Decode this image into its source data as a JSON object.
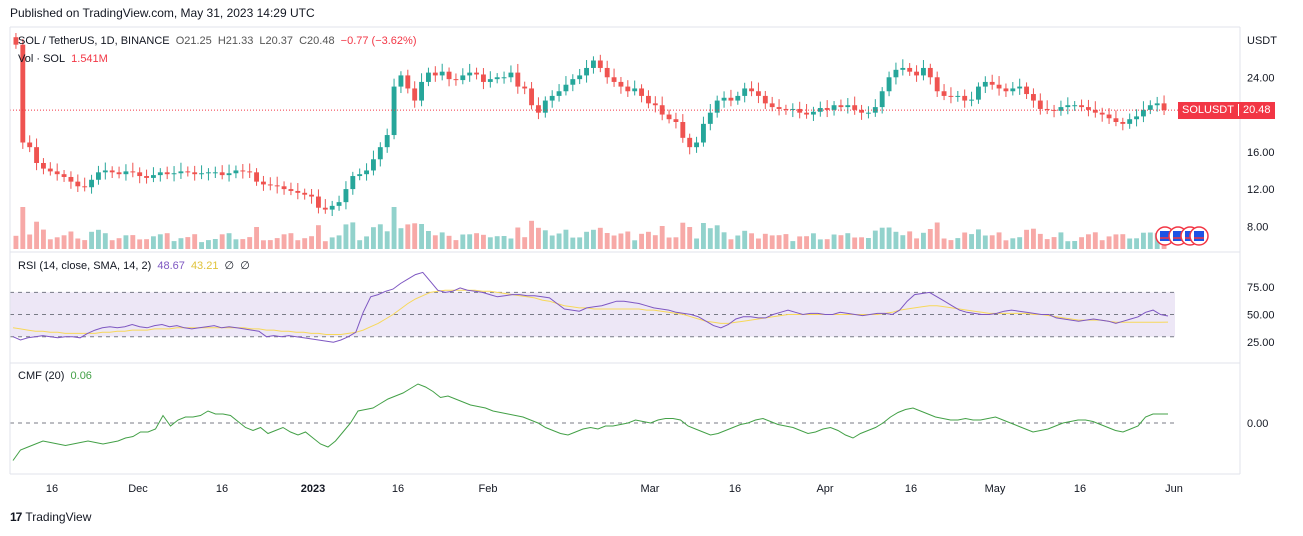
{
  "header": {
    "published": "Published on TradingView.com, May 31, 2023 14:29 UTC"
  },
  "legend": {
    "symbol": "SOL / TetherUS, 1D, BINANCE",
    "open": "O21.25",
    "high": "H21.33",
    "low": "L20.37",
    "close": "C20.48",
    "change": "−0.77 (−3.62%)",
    "vol_label": "Vol · SOL",
    "vol_value": "1.541M",
    "rsi_label": "RSI (14, close, SMA, 14, 2)",
    "rsi_value": "48.67",
    "rsi_sma": "43.21",
    "rsi_extra1": "∅",
    "rsi_extra2": "∅",
    "cmf_label": "CMF (20)",
    "cmf_value": "0.06"
  },
  "price_tag": {
    "symbol": "SOLUSDT",
    "price": "20.48"
  },
  "footer": {
    "brand": "TradingView"
  },
  "colors": {
    "up": "#26a69a",
    "down": "#ef5350",
    "rsi": "#7e57c2",
    "rsi_sma": "#f7d85a",
    "cmf": "#43a047",
    "band": "#ede7f6"
  },
  "chart_data": [
    {
      "type": "candlestick",
      "title": "SOL / TetherUS, 1D, BINANCE",
      "ylabel": "USDT",
      "y_ticks": [
        "24.00",
        "20.00",
        "16.00",
        "12.00",
        "8.00"
      ],
      "ylim": [
        6.0,
        28.0
      ],
      "x_ticks": [
        "16",
        "Dec",
        "16",
        "2023",
        "16",
        "Feb",
        "Mar",
        "16",
        "Apr",
        "16",
        "May",
        "16",
        "Jun"
      ],
      "last_close": 20.48,
      "close_series_approx": [
        27.5,
        17.0,
        16.5,
        14.8,
        14.2,
        13.9,
        13.6,
        13.3,
        12.8,
        12.3,
        12.2,
        13.0,
        13.8,
        14.0,
        13.8,
        13.6,
        13.9,
        13.8,
        13.4,
        13.2,
        13.5,
        13.8,
        13.6,
        13.7,
        13.9,
        13.8,
        13.6,
        13.7,
        13.8,
        13.8,
        13.5,
        13.7,
        14.0,
        13.9,
        13.8,
        12.8,
        12.5,
        12.4,
        12.3,
        12.0,
        11.8,
        11.6,
        11.4,
        11.2,
        10.0,
        9.8,
        10.2,
        10.6,
        12.0,
        13.4,
        13.6,
        14.0,
        15.2,
        16.5,
        17.8,
        23.0,
        24.2,
        22.8,
        21.5,
        23.5,
        24.5,
        24.2,
        24.6,
        23.8,
        23.7,
        24.2,
        24.5,
        24.3,
        23.5,
        23.8,
        24.0,
        24.0,
        24.5,
        23.0,
        22.8,
        21.0,
        20.2,
        21.5,
        22.0,
        22.5,
        23.2,
        23.8,
        24.2,
        25.0,
        25.8,
        25.0,
        24.0,
        23.5,
        23.0,
        22.5,
        22.8,
        22.0,
        21.2,
        21.0,
        20.0,
        19.5,
        19.2,
        17.5,
        16.5,
        17.0,
        19.0,
        20.2,
        21.5,
        21.8,
        21.5,
        22.0,
        22.8,
        22.5,
        22.0,
        21.2,
        20.8,
        20.6,
        20.5,
        20.6,
        20.2,
        20.0,
        20.3,
        20.7,
        20.5,
        21.0,
        20.8,
        21.0,
        20.5,
        20.2,
        20.2,
        20.8,
        22.5,
        24.0,
        24.8,
        25.0,
        24.6,
        24.2,
        25.0,
        24.0,
        22.5,
        22.0,
        21.9,
        22.0,
        21.5,
        21.6,
        23.0,
        23.5,
        23.2,
        22.8,
        22.5,
        22.8,
        23.0,
        22.2,
        21.5,
        20.6,
        20.5,
        20.4,
        20.8,
        21.0,
        21.0,
        20.8,
        20.5,
        20.2,
        20.0,
        19.6,
        19.2,
        19.0,
        19.5,
        19.8,
        20.5,
        21.0,
        21.2,
        20.48
      ]
    },
    {
      "type": "bar",
      "title": "Vol · SOL",
      "last_value": "1.541M"
    },
    {
      "type": "line",
      "title": "RSI (14, close, SMA, 14, 2)",
      "y_ticks": [
        "75.00",
        "50.00",
        "25.00"
      ],
      "ylim": [
        18,
        92
      ],
      "band": [
        30,
        70
      ],
      "series": [
        {
          "name": "RSI",
          "values": [
            30,
            27,
            29,
            30,
            31,
            30,
            29,
            30,
            30,
            29,
            33,
            36,
            38,
            39,
            38,
            39,
            41,
            39,
            38,
            40,
            41,
            39,
            40,
            38,
            37,
            38,
            39,
            40,
            38,
            39,
            38,
            37,
            36,
            35,
            30,
            31,
            30,
            31,
            30,
            29,
            28,
            27,
            26,
            25,
            27,
            30,
            34,
            52,
            66,
            68,
            71,
            73,
            78,
            82,
            86,
            88,
            80,
            72,
            70,
            71,
            74,
            72,
            71,
            70,
            68,
            66,
            67,
            68,
            68,
            67,
            67,
            66,
            65,
            60,
            55,
            54,
            53,
            56,
            57,
            58,
            60,
            62,
            62,
            61,
            60,
            58,
            56,
            55,
            54,
            52,
            51,
            50,
            48,
            44,
            40,
            38,
            41,
            46,
            48,
            48,
            47,
            47,
            50,
            52,
            54,
            52,
            50,
            51,
            51,
            50,
            50,
            52,
            51,
            50,
            49,
            50,
            51,
            51,
            50,
            54,
            62,
            68,
            69,
            70,
            66,
            62,
            58,
            54,
            52,
            51,
            50,
            50,
            51,
            53,
            54,
            53,
            52,
            51,
            50,
            50,
            47,
            46,
            45,
            44,
            45,
            46,
            45,
            44,
            42,
            44,
            46,
            48,
            52,
            54,
            50,
            48.67
          ]
        },
        {
          "name": "SMA",
          "values": [
            38,
            37,
            36,
            35,
            35,
            34,
            34,
            33,
            33,
            33,
            33,
            33,
            34,
            34,
            35,
            35,
            36,
            36,
            36,
            37,
            37,
            37,
            38,
            38,
            38,
            38,
            38,
            38,
            38,
            38,
            38,
            38,
            37,
            37,
            36,
            36,
            35,
            35,
            34,
            34,
            33,
            33,
            32,
            32,
            32,
            33,
            34,
            36,
            39,
            42,
            46,
            50,
            55,
            60,
            64,
            67,
            70,
            71,
            72,
            72,
            72,
            72,
            72,
            71,
            71,
            70,
            69,
            68,
            67,
            66,
            65,
            63,
            62,
            60,
            58,
            57,
            56,
            56,
            55,
            55,
            55,
            55,
            55,
            55,
            55,
            54,
            54,
            53,
            52,
            51,
            50,
            48,
            46,
            44,
            43,
            42,
            42,
            43,
            44,
            45,
            46,
            47,
            48,
            49,
            50,
            50,
            50,
            50,
            50,
            50,
            50,
            50,
            50,
            50,
            50,
            50,
            50,
            51,
            52,
            54,
            55,
            56,
            57,
            58,
            58,
            57,
            56,
            55,
            54,
            53,
            52,
            51,
            51,
            51,
            51,
            51,
            51,
            50,
            50,
            49,
            48,
            47,
            46,
            45,
            45,
            45,
            45,
            44,
            43,
            43,
            43,
            43,
            43,
            43,
            43,
            43.21
          ]
        }
      ]
    },
    {
      "type": "line",
      "title": "CMF (20)",
      "y_ticks": [
        "0.00"
      ],
      "ylim": [
        -0.3,
        0.3
      ],
      "series": [
        {
          "name": "CMF",
          "values": [
            -0.25,
            -0.18,
            -0.16,
            -0.14,
            -0.12,
            -0.13,
            -0.14,
            -0.15,
            -0.14,
            -0.13,
            -0.12,
            -0.13,
            -0.14,
            -0.13,
            -0.12,
            -0.1,
            -0.09,
            -0.06,
            -0.06,
            -0.04,
            0.05,
            -0.02,
            0.02,
            0.04,
            0.04,
            0.05,
            0.08,
            0.06,
            0.06,
            0.05,
            0.01,
            -0.03,
            -0.05,
            -0.03,
            -0.07,
            -0.05,
            -0.03,
            -0.06,
            -0.08,
            -0.06,
            -0.1,
            -0.14,
            -0.16,
            -0.12,
            -0.06,
            0.0,
            0.08,
            0.09,
            0.1,
            0.13,
            0.16,
            0.18,
            0.2,
            0.23,
            0.26,
            0.24,
            0.21,
            0.17,
            0.18,
            0.16,
            0.14,
            0.12,
            0.11,
            0.1,
            0.08,
            0.07,
            0.06,
            0.05,
            0.04,
            0.02,
            0.0,
            -0.03,
            -0.05,
            -0.07,
            -0.08,
            -0.06,
            -0.04,
            -0.03,
            -0.04,
            -0.02,
            -0.02,
            -0.01,
            0.0,
            0.02,
            0.01,
            0.0,
            0.02,
            0.03,
            0.03,
            0.02,
            -0.02,
            -0.04,
            -0.06,
            -0.08,
            -0.07,
            -0.05,
            -0.03,
            -0.01,
            0.0,
            0.02,
            0.03,
            0.01,
            -0.01,
            -0.02,
            -0.03,
            -0.05,
            -0.07,
            -0.06,
            -0.04,
            -0.03,
            -0.05,
            -0.08,
            -0.1,
            -0.07,
            -0.05,
            -0.03,
            0.0,
            0.04,
            0.07,
            0.09,
            0.1,
            0.08,
            0.06,
            0.04,
            0.03,
            0.02,
            0.02,
            0.03,
            0.02,
            0.02,
            0.03,
            0.04,
            0.02,
            0.0,
            -0.02,
            -0.04,
            -0.06,
            -0.05,
            -0.04,
            -0.02,
            0.0,
            0.01,
            0.02,
            0.02,
            0.01,
            -0.01,
            -0.03,
            -0.05,
            -0.06,
            -0.04,
            -0.02,
            0.04,
            0.06,
            0.06,
            0.06
          ]
        }
      ]
    }
  ]
}
